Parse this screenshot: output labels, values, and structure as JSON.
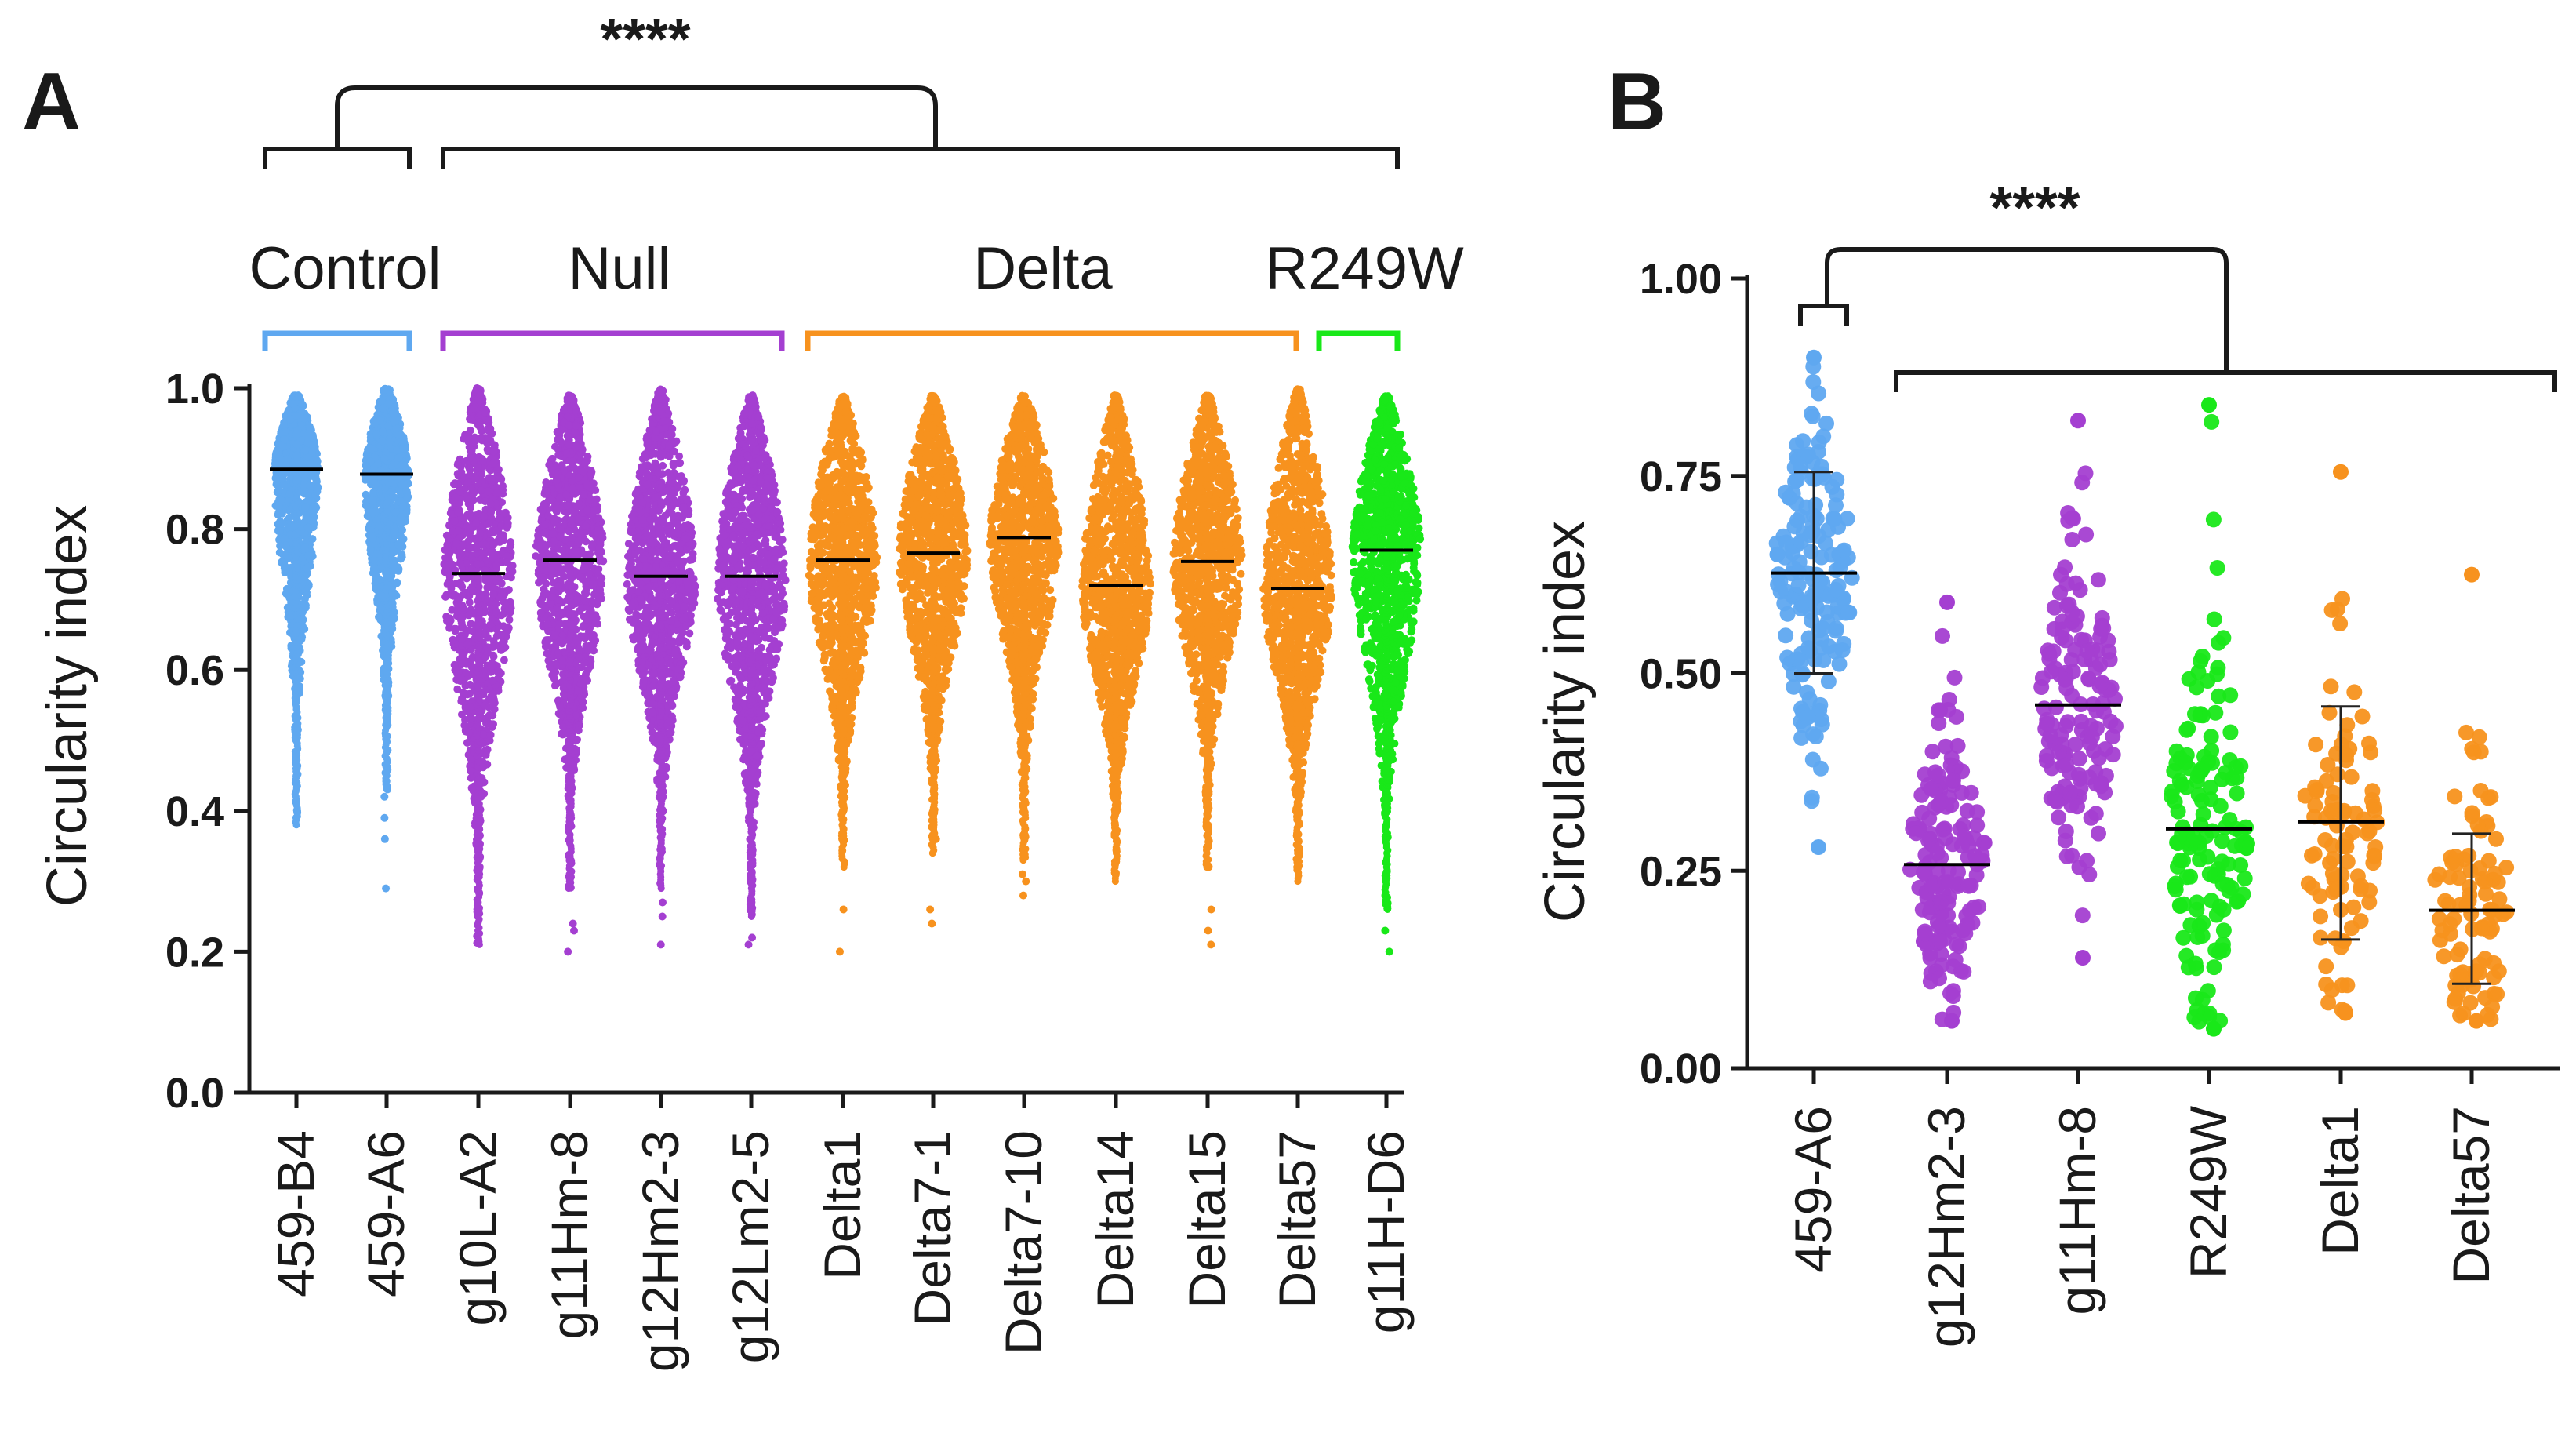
{
  "chart_data": [
    {
      "panel": "A",
      "type": "scatter",
      "subtype": "violin-dot (bee swarm)",
      "ylabel": "Circularity index",
      "ylim": [
        0.0,
        1.0
      ],
      "yticks": [
        "0.0",
        "0.2",
        "0.4",
        "0.6",
        "0.8",
        "1.0"
      ],
      "significance": "****",
      "groups": [
        {
          "name": "Control",
          "color": "#5fa8f0",
          "members": [
            "459-B4",
            "459-A6"
          ]
        },
        {
          "name": "Null",
          "color": "#a43fd1",
          "members": [
            "g10L-A2",
            "g11Hm-8",
            "g12Hm2-3",
            "g12Lm2-5"
          ]
        },
        {
          "name": "Delta",
          "color": "#f7921e",
          "members": [
            "Delta1",
            "Delta7-1",
            "Delta7-10",
            "Delta14",
            "Delta15",
            "Delta57"
          ]
        },
        {
          "name": "R249W",
          "color": "#19e819",
          "members": [
            "g11H-D6"
          ]
        }
      ],
      "series": [
        {
          "name": "459-B4",
          "color": "#5fa8f0",
          "median": 0.885,
          "min": 0.38,
          "max": 0.99,
          "outliers": []
        },
        {
          "name": "459-A6",
          "color": "#5fa8f0",
          "median": 0.878,
          "min": 0.43,
          "max": 1.0,
          "outliers": [
            0.29,
            0.36,
            0.39,
            0.42
          ]
        },
        {
          "name": "g10L-A2",
          "color": "#a43fd1",
          "median": 0.737,
          "min": 0.21,
          "max": 1.0,
          "outliers": []
        },
        {
          "name": "g11Hm-8",
          "color": "#a43fd1",
          "median": 0.756,
          "min": 0.29,
          "max": 0.99,
          "outliers": [
            0.2,
            0.23,
            0.24
          ]
        },
        {
          "name": "g12Hm2-3",
          "color": "#a43fd1",
          "median": 0.733,
          "min": 0.29,
          "max": 1.0,
          "outliers": [
            0.21,
            0.25,
            0.27
          ]
        },
        {
          "name": "g12Lm2-5",
          "color": "#a43fd1",
          "median": 0.733,
          "min": 0.25,
          "max": 0.99,
          "outliers": [
            0.21,
            0.22
          ]
        },
        {
          "name": "Delta1",
          "color": "#f7921e",
          "median": 0.756,
          "min": 0.32,
          "max": 0.99,
          "outliers": [
            0.2,
            0.26
          ]
        },
        {
          "name": "Delta7-1",
          "color": "#f7921e",
          "median": 0.766,
          "min": 0.34,
          "max": 0.99,
          "outliers": [
            0.24,
            0.26,
            0.36
          ]
        },
        {
          "name": "Delta7-10",
          "color": "#f7921e",
          "median": 0.788,
          "min": 0.33,
          "max": 0.99,
          "outliers": [
            0.28,
            0.3,
            0.31
          ]
        },
        {
          "name": "Delta14",
          "color": "#f7921e",
          "median": 0.72,
          "min": 0.3,
          "max": 0.99,
          "outliers": []
        },
        {
          "name": "Delta15",
          "color": "#f7921e",
          "median": 0.754,
          "min": 0.32,
          "max": 0.99,
          "outliers": [
            0.21,
            0.23,
            0.26
          ]
        },
        {
          "name": "Delta57",
          "color": "#f7921e",
          "median": 0.716,
          "min": 0.3,
          "max": 1.0,
          "outliers": []
        },
        {
          "name": "g11H-D6",
          "color": "#19e819",
          "median": 0.77,
          "min": 0.26,
          "max": 0.99,
          "outliers": [
            0.2,
            0.23
          ]
        }
      ]
    },
    {
      "panel": "B",
      "type": "scatter",
      "subtype": "dot plot with median and interquartile error bars",
      "ylabel": "Circularity index",
      "ylim": [
        0.0,
        1.0
      ],
      "yticks": [
        "0.00",
        "0.25",
        "0.50",
        "0.75",
        "1.00"
      ],
      "significance": "****",
      "series": [
        {
          "name": "459-A6",
          "color": "#5fa8f0",
          "median": 0.627,
          "q1": 0.5,
          "q3": 0.755,
          "min": 0.28,
          "max": 0.9
        },
        {
          "name": "g12Hm2-3",
          "color": "#a43fd1",
          "median": 0.258,
          "q1": null,
          "q3": null,
          "min": 0.06,
          "max": 0.59
        },
        {
          "name": "g11Hm-8",
          "color": "#a43fd1",
          "median": 0.46,
          "q1": null,
          "q3": null,
          "min": 0.14,
          "max": 0.82
        },
        {
          "name": "R249W",
          "color": "#19e819",
          "median": 0.303,
          "q1": null,
          "q3": null,
          "min": 0.05,
          "max": 0.84
        },
        {
          "name": "Delta1",
          "color": "#f7921e",
          "median": 0.312,
          "q1": 0.163,
          "q3": 0.458,
          "min": 0.07,
          "max": 0.755
        },
        {
          "name": "Delta57",
          "color": "#f7921e",
          "median": 0.2,
          "q1": 0.107,
          "q3": 0.297,
          "min": 0.06,
          "max": 0.625
        }
      ]
    }
  ]
}
